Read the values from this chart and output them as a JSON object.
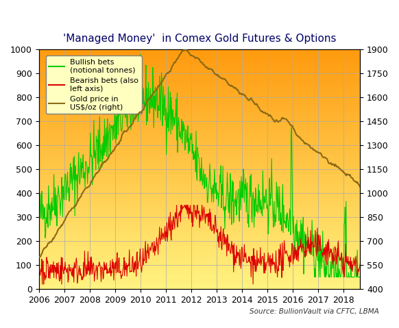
{
  "title": "'Managed Money'  in Comex Gold Futures & Options",
  "source_text": "Source: BullionVault via CFTC, LBMA",
  "left_ylim": [
    0,
    1000
  ],
  "right_ylim": [
    400,
    1900
  ],
  "left_yticks": [
    0,
    100,
    200,
    300,
    400,
    500,
    600,
    700,
    800,
    900,
    1000
  ],
  "right_yticks": [
    400,
    550,
    700,
    850,
    1000,
    1150,
    1300,
    1450,
    1600,
    1750,
    1900
  ],
  "bg_color_top": "#FFD700",
  "bg_color_bottom": "#FFEE88",
  "grid_color": "#AAAAAA",
  "bullish_color": "#00CC00",
  "bearish_color": "#DD0000",
  "gold_color": "#8B6914",
  "legend_labels": [
    "Bullish bets\n(notional tonnes)",
    "Bearish bets (also\nleft axis)",
    "Gold price in\nUS$/oz (right)"
  ]
}
